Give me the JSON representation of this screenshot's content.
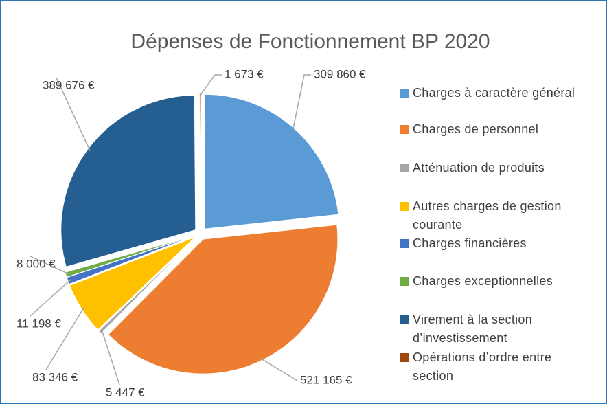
{
  "chart_data": {
    "type": "pie",
    "title": "Dépenses de Fonctionnement BP 2020",
    "categories": [
      "Charges à caractère général",
      "Charges de personnel",
      "Atténuation de produits",
      "Autres charges de gestion courante",
      "Charges financières",
      "Charges exceptionnelles",
      "Virement à la section d’investissement",
      "Opérations d’ordre entre section"
    ],
    "values": [
      309860,
      521165,
      5447,
      83346,
      11198,
      8000,
      389676,
      1673
    ],
    "value_labels": [
      "309 860 €",
      "521 165 €",
      "5 447 €",
      "83 346 €",
      "11 198 €",
      "8 000 €",
      "389 676 €",
      "1 673 €"
    ],
    "colors": [
      "#5b9bd5",
      "#ed7d31",
      "#a5a5a5",
      "#ffc000",
      "#4472c4",
      "#70ad47",
      "#255e91",
      "#9e480e"
    ],
    "legend": "right"
  }
}
